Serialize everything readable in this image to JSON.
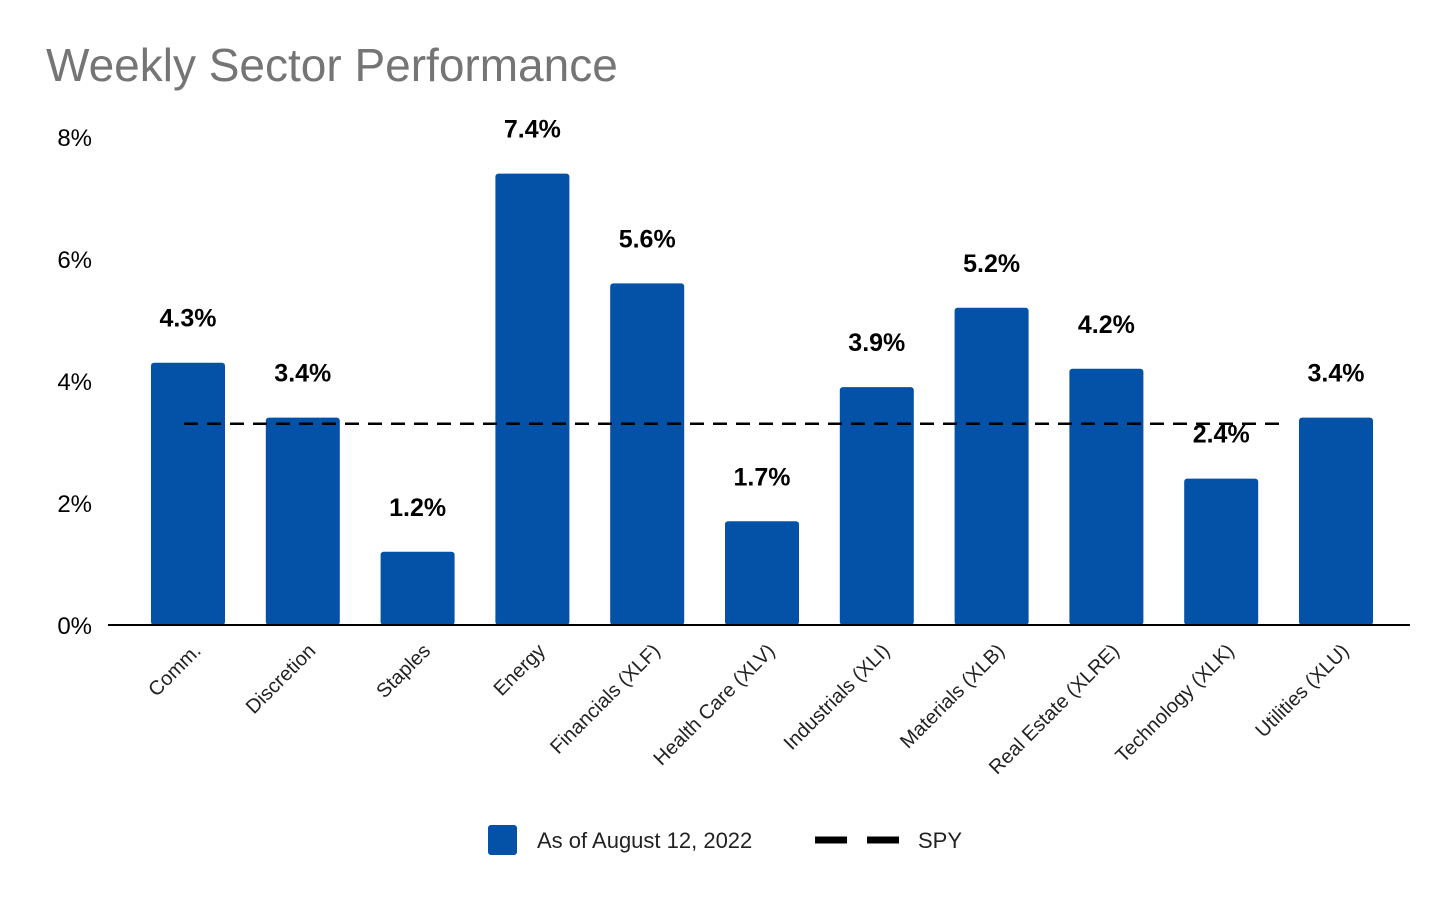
{
  "chart_data": {
    "type": "bar",
    "title": "Weekly Sector Performance",
    "categories": [
      "Comm.",
      "Discretion",
      "Staples",
      "Energy",
      "Financials (XLF)",
      "Health Care (XLV)",
      "Industrials (XLI)",
      "Materials (XLB)",
      "Real Estate (XLRE)",
      "Technology (XLK)",
      "Utilities (XLU)"
    ],
    "series": [
      {
        "name": "As of August 12, 2022",
        "values": [
          4.3,
          3.4,
          1.2,
          7.4,
          5.6,
          1.7,
          3.9,
          5.2,
          4.2,
          2.4,
          3.4
        ],
        "color": "#0352a7"
      }
    ],
    "data_labels": [
      "4.3%",
      "3.4%",
      "1.2%",
      "7.4%",
      "5.6%",
      "1.7%",
      "3.9%",
      "5.2%",
      "4.2%",
      "2.4%",
      "3.4%"
    ],
    "reference_line": {
      "name": "SPY",
      "value": 3.3,
      "color": "#000000",
      "style": "dashed"
    },
    "ylim": [
      0,
      8
    ],
    "yticks": [
      0,
      2,
      4,
      6,
      8
    ],
    "ytick_labels": [
      "0%",
      "2%",
      "4%",
      "6%",
      "8%"
    ],
    "xlabel": "",
    "ylabel": "",
    "grid": false,
    "legend_position": "bottom-center"
  }
}
